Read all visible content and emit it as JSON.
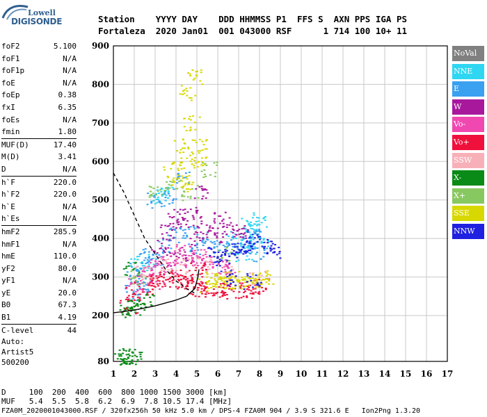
{
  "logo": {
    "line1": "Lowell",
    "line2": "DIGISONDE"
  },
  "header": {
    "line1": "Station    YYYY DAY    DDD HHMMSS P1  FFS S  AXN PPS IGA PS",
    "line2": "Fortaleza  2020 Jan01  001 043000 RSF      1 714 100 10+ 11"
  },
  "params": [
    {
      "group": [
        {
          "label": "foF2",
          "value": "5.100"
        },
        {
          "label": "foF1",
          "value": "N/A"
        },
        {
          "label": "foF1p",
          "value": "N/A"
        },
        {
          "label": "foE",
          "value": "N/A"
        },
        {
          "label": "foEp",
          "value": "0.38"
        },
        {
          "label": "fxI",
          "value": "6.35"
        },
        {
          "label": "foEs",
          "value": "N/A"
        },
        {
          "label": "fmin",
          "value": "1.80"
        }
      ]
    },
    {
      "group": [
        {
          "label": "MUF(D)",
          "value": "17.40"
        },
        {
          "label": "M(D)",
          "value": "3.41"
        },
        {
          "label": "D",
          "value": "N/A"
        }
      ]
    },
    {
      "group": [
        {
          "label": "h`F",
          "value": "220.0"
        },
        {
          "label": "h`F2",
          "value": "220.0"
        },
        {
          "label": "h`E",
          "value": "N/A"
        },
        {
          "label": "h`Es",
          "value": "N/A"
        }
      ]
    },
    {
      "group": [
        {
          "label": "hmF2",
          "value": "285.9"
        },
        {
          "label": "hmF1",
          "value": "N/A"
        },
        {
          "label": "hmE",
          "value": "110.0"
        },
        {
          "label": "yF2",
          "value": "80.0"
        },
        {
          "label": "yF1",
          "value": "N/A"
        },
        {
          "label": "yE",
          "value": "20.0"
        },
        {
          "label": "B0",
          "value": "67.3"
        },
        {
          "label": "B1",
          "value": "4.19"
        }
      ]
    },
    {
      "group": [
        {
          "label": "C-level",
          "value": "44"
        }
      ]
    }
  ],
  "auto": {
    "line1": "Auto:",
    "line2": "Artist5",
    "line3": "500200"
  },
  "bottom": {
    "line1": "D     100  200  400  600  800 1000 1500 3000 [km]",
    "line2": "MUF   5.4  5.5  5.8  6.2  6.9  7.8 10.5 17.4 [MHz]",
    "line3": "FZA0M_2020001043000.RSF / 320fx256h 50 kHz 5.0 km / DPS-4 FZA0M 904 / 3.9 S 321.6 E   Ion2Png 1.3.20"
  },
  "legend": [
    {
      "label": "NoVal",
      "color": "#808080"
    },
    {
      "label": "NNE",
      "color": "#2fd6f2"
    },
    {
      "label": "E",
      "color": "#3aa0f0"
    },
    {
      "label": "W",
      "color": "#a8189c"
    },
    {
      "label": "Vo-",
      "color": "#f048b0"
    },
    {
      "label": "Vo+",
      "color": "#f0103c"
    },
    {
      "label": "SSW",
      "color": "#f8b0b8"
    },
    {
      "label": "X-",
      "color": "#0a8a16"
    },
    {
      "label": "X+",
      "color": "#88c860"
    },
    {
      "label": "SSE",
      "color": "#d8d800"
    },
    {
      "label": "NNW",
      "color": "#2020e0"
    }
  ],
  "chart_data": {
    "type": "scatter",
    "title": "",
    "xlabel": "",
    "ylabel": "",
    "xlim": [
      1,
      17
    ],
    "ylim": [
      80,
      900
    ],
    "x_ticks": [
      1,
      2,
      3,
      4,
      5,
      6,
      7,
      8,
      9,
      10,
      11,
      12,
      13,
      14,
      15,
      16,
      17
    ],
    "y_ticks": [
      80,
      200,
      300,
      400,
      500,
      600,
      700,
      800,
      900
    ],
    "grid": true,
    "series": [
      {
        "name": "NNE",
        "color": "#2fd6f2",
        "points": [
          [
            7.4,
            380
          ],
          [
            7.6,
            430
          ],
          [
            7.8,
            410
          ],
          [
            8.0,
            390
          ],
          [
            7.2,
            360
          ],
          [
            7.5,
            440
          ],
          [
            7.9,
            450
          ],
          [
            2.2,
            330
          ],
          [
            2.5,
            340
          ],
          [
            3.5,
            520
          ],
          [
            3.3,
            510
          ],
          [
            6.8,
            395
          ]
        ]
      },
      {
        "name": "E",
        "color": "#3aa0f0",
        "points": [
          [
            1.9,
            300
          ],
          [
            2.2,
            320
          ],
          [
            2.6,
            360
          ],
          [
            3.0,
            340
          ],
          [
            3.4,
            380
          ],
          [
            4.0,
            410
          ],
          [
            4.6,
            420
          ],
          [
            5.0,
            380
          ],
          [
            5.6,
            400
          ],
          [
            6.2,
            380
          ],
          [
            6.8,
            400
          ],
          [
            7.2,
            370
          ],
          [
            7.6,
            410
          ],
          [
            8.0,
            360
          ],
          [
            1.8,
            260
          ],
          [
            2.4,
            280
          ],
          [
            3.6,
            510
          ],
          [
            3.0,
            500
          ],
          [
            4.2,
            560
          ]
        ]
      },
      {
        "name": "W",
        "color": "#a8189c",
        "points": [
          [
            3.2,
            380
          ],
          [
            3.6,
            420
          ],
          [
            4.0,
            460
          ],
          [
            4.4,
            440
          ],
          [
            4.8,
            470
          ],
          [
            5.0,
            400
          ],
          [
            5.4,
            430
          ],
          [
            5.8,
            410
          ],
          [
            6.2,
            450
          ],
          [
            6.6,
            430
          ],
          [
            7.0,
            420
          ],
          [
            4.6,
            360
          ],
          [
            3.8,
            350
          ],
          [
            5.2,
            520
          ]
        ]
      },
      {
        "name": "Vo-",
        "color": "#f048b0",
        "points": [
          [
            2.0,
            280
          ],
          [
            2.4,
            300
          ],
          [
            2.8,
            320
          ],
          [
            3.2,
            340
          ],
          [
            3.6,
            330
          ],
          [
            4.0,
            350
          ],
          [
            4.4,
            370
          ],
          [
            4.8,
            340
          ],
          [
            5.2,
            360
          ],
          [
            5.6,
            340
          ],
          [
            6.0,
            320
          ],
          [
            6.4,
            330
          ],
          [
            3.0,
            290
          ]
        ]
      },
      {
        "name": "Vo+",
        "color": "#f0103c",
        "points": [
          [
            1.7,
            225
          ],
          [
            2.0,
            260
          ],
          [
            2.4,
            275
          ],
          [
            2.8,
            285
          ],
          [
            3.2,
            295
          ],
          [
            3.6,
            300
          ],
          [
            4.0,
            290
          ],
          [
            4.4,
            285
          ],
          [
            4.8,
            275
          ],
          [
            5.2,
            270
          ],
          [
            5.6,
            275
          ],
          [
            6.0,
            270
          ],
          [
            6.4,
            265
          ],
          [
            6.8,
            270
          ],
          [
            7.2,
            260
          ],
          [
            7.6,
            270
          ],
          [
            8.0,
            280
          ],
          [
            5.0,
            320
          ],
          [
            4.6,
            300
          ]
        ]
      },
      {
        "name": "SSW",
        "color": "#f8b0b8",
        "points": [
          [
            2.3,
            310
          ],
          [
            3.4,
            330
          ],
          [
            4.4,
            330
          ],
          [
            5.4,
            330
          ],
          [
            6.6,
            310
          ],
          [
            7.8,
            300
          ]
        ]
      },
      {
        "name": "X-",
        "color": "#0a8a16",
        "points": [
          [
            1.3,
            91
          ],
          [
            1.5,
            93
          ],
          [
            1.7,
            95
          ],
          [
            1.9,
            94
          ],
          [
            1.6,
            220
          ],
          [
            1.9,
            215
          ],
          [
            2.1,
            230
          ],
          [
            2.5,
            240
          ],
          [
            1.8,
            320
          ]
        ]
      },
      {
        "name": "X+",
        "color": "#88c860",
        "points": [
          [
            2.2,
            300
          ],
          [
            3.0,
            520
          ],
          [
            3.8,
            540
          ],
          [
            4.6,
            520
          ],
          [
            5.6,
            580
          ],
          [
            6.4,
            360
          ]
        ]
      },
      {
        "name": "SSE",
        "color": "#d8d800",
        "points": [
          [
            4.2,
            560
          ],
          [
            4.6,
            600
          ],
          [
            5.0,
            610
          ],
          [
            4.4,
            540
          ],
          [
            3.8,
            580
          ],
          [
            5.5,
            280
          ],
          [
            6.0,
            290
          ],
          [
            6.5,
            285
          ],
          [
            7.0,
            285
          ],
          [
            7.5,
            290
          ],
          [
            8.0,
            295
          ],
          [
            8.2,
            300
          ],
          [
            6.6,
            300
          ],
          [
            5.8,
            295
          ],
          [
            4.3,
            640
          ],
          [
            4.7,
            700
          ],
          [
            5.1,
            640
          ],
          [
            4.9,
            820
          ],
          [
            4.5,
            780
          ]
        ]
      },
      {
        "name": "NNW",
        "color": "#2020e0",
        "points": [
          [
            6.2,
            350
          ],
          [
            6.6,
            360
          ],
          [
            7.0,
            370
          ],
          [
            7.4,
            380
          ],
          [
            7.8,
            400
          ],
          [
            8.2,
            380
          ],
          [
            8.6,
            370
          ],
          [
            5.8,
            360
          ],
          [
            7.6,
            290
          ],
          [
            6.4,
            300
          ]
        ]
      }
    ],
    "traces": [
      {
        "style": "solid",
        "color": "#000000",
        "points": [
          [
            1.0,
            207
          ],
          [
            2.0,
            214
          ],
          [
            3.0,
            225
          ],
          [
            4.0,
            240
          ],
          [
            4.5,
            250
          ],
          [
            4.9,
            270
          ],
          [
            5.05,
            300
          ],
          [
            5.1,
            320
          ]
        ]
      },
      {
        "style": "dashed",
        "color": "#000000",
        "points": [
          [
            1.0,
            570
          ],
          [
            1.5,
            520
          ],
          [
            2.0,
            460
          ],
          [
            2.5,
            400
          ],
          [
            3.0,
            360
          ],
          [
            3.5,
            320
          ],
          [
            4.0,
            290
          ],
          [
            4.5,
            270
          ],
          [
            5.0,
            255
          ]
        ]
      }
    ]
  }
}
